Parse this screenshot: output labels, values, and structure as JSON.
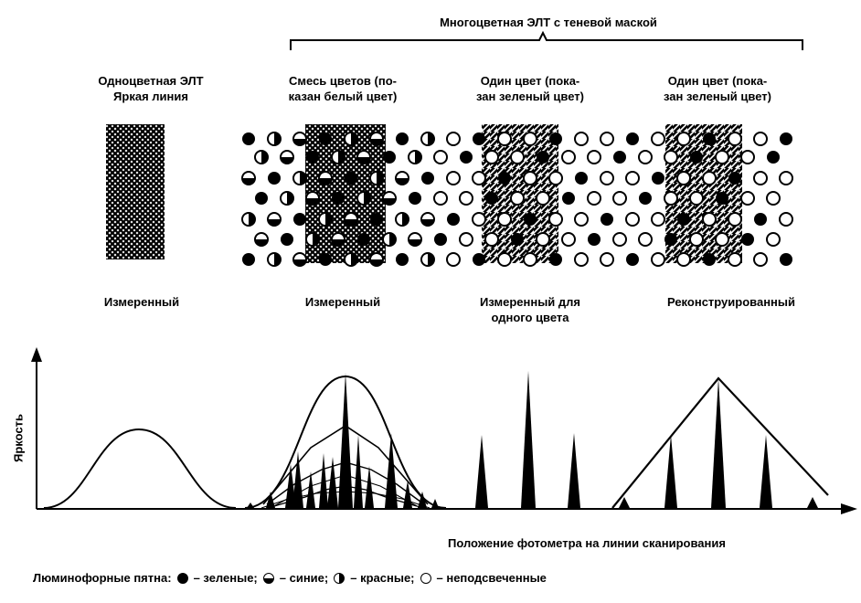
{
  "header": {
    "group_title": "Многоцветная ЭЛТ с теневой маской"
  },
  "columns": [
    {
      "heading": [
        "Одноцветная ЭЛТ",
        "Яркая линия"
      ],
      "caption": [
        "Измеренный"
      ]
    },
    {
      "heading": [
        "Смесь цветов (по-",
        "казан белый цвет)"
      ],
      "caption": [
        "Измеренный"
      ]
    },
    {
      "heading": [
        "Один цвет (пока-",
        "зан зеленый цвет)"
      ],
      "caption": [
        "Измеренный для",
        "одного цвета"
      ]
    },
    {
      "heading": [
        "Один цвет (пока-",
        "зан зеленый цвет)"
      ],
      "caption": [
        "Реконструированный"
      ]
    }
  ],
  "graph": {
    "ylabel": "Яркость",
    "xlabel": "Положение фотометра на линии сканирования"
  },
  "legend": {
    "prefix": "Люминофорные пятна:",
    "items": [
      {
        "icon": "filled-dot-icon",
        "text": "– зеленые;"
      },
      {
        "icon": "half-filled-dot-icon",
        "text": "– синие;"
      },
      {
        "icon": "vertical-half-dot-icon",
        "text": "– красные;"
      },
      {
        "icon": "open-dot-icon",
        "text": "– неподсвеченные"
      }
    ]
  },
  "colors": {
    "ink": "#000000",
    "paper": "#ffffff"
  }
}
